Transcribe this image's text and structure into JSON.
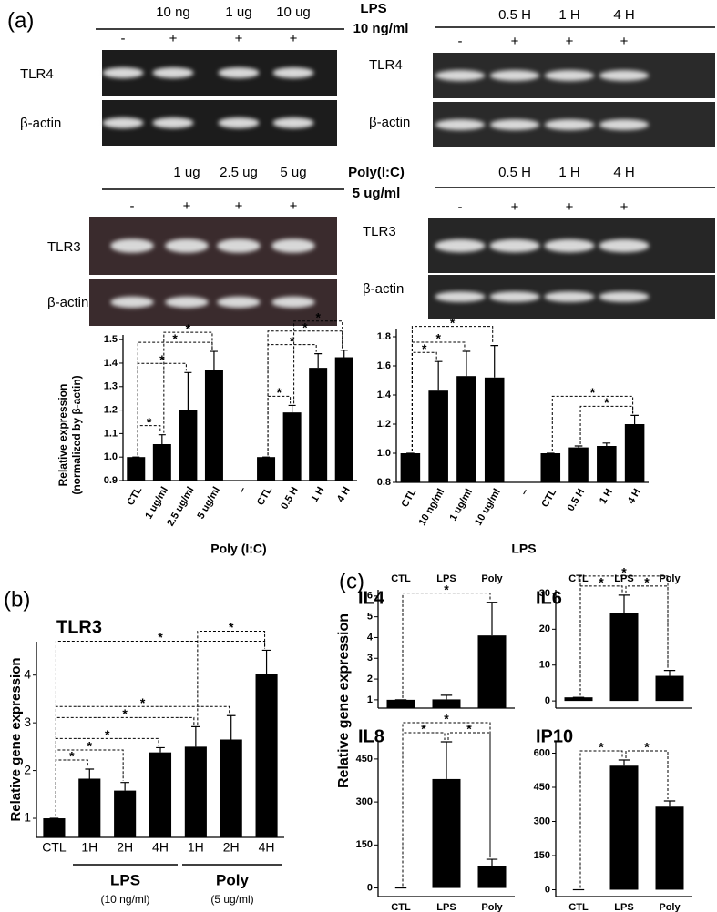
{
  "panel_labels": [
    "(a)",
    "(b)",
    "(c)"
  ],
  "stimuli": [
    {
      "agent": "LPS",
      "dose": "10 ng/ml"
    },
    {
      "agent": "Poly(I:C)",
      "dose": "5 ug/ml"
    }
  ],
  "gels": [
    {
      "conditions": [
        "10 ng",
        "1 ug",
        "10 ug"
      ],
      "treatment": [
        "-",
        "+",
        "+",
        "+"
      ],
      "rows": [
        "TLR4",
        "β-actin"
      ]
    },
    {
      "conditions": [
        "0.5 H",
        "1 H",
        "4 H"
      ],
      "treatment": [
        "-",
        "+",
        "+",
        "+"
      ],
      "rows": [
        "TLR4",
        "β-actin"
      ]
    },
    {
      "conditions": [
        "1 ug",
        "2.5 ug",
        "5 ug"
      ],
      "treatment": [
        "-",
        "+",
        "+",
        "+"
      ],
      "rows": [
        "TLR3",
        "β-actin"
      ]
    },
    {
      "conditions": [
        "0.5 H",
        "1 H",
        "4 H"
      ],
      "treatment": [
        "-",
        "+",
        "+",
        "+"
      ],
      "rows": [
        "TLR3",
        "β-actin"
      ]
    }
  ],
  "panel_c": {
    "ylabel": "Relative gene expression"
  },
  "chart_data": [
    {
      "type": "bar",
      "color": "#000000",
      "xlabel": "Poly (I:C)",
      "ylabel": [
        "Relative expression",
        "(normalized by β-actin)"
      ],
      "categories": [
        "CTL",
        "1 ug/ml",
        "2.5 ug/ml",
        "5 ug/ml",
        "–",
        "CTL",
        "0.5 H",
        "1 H",
        "4 H"
      ],
      "values": [
        1.0,
        1.055,
        1.2,
        1.37,
        null,
        1.0,
        1.19,
        1.38,
        1.425
      ],
      "errors": [
        0,
        0.04,
        0.16,
        0.08,
        null,
        0,
        0.03,
        0.06,
        0.03
      ],
      "ylim": [
        0.9,
        1.52
      ],
      "yticks": [
        0.9,
        {
          "value": 1.0,
          "label": "1.0"
        },
        1.1,
        1.2,
        1.3,
        1.4,
        1.5
      ],
      "significance": [
        "*",
        "*",
        "*",
        "*",
        "*",
        "*",
        "*",
        "*"
      ]
    },
    {
      "type": "bar",
      "color": "#000000",
      "xlabel": "LPS",
      "categories": [
        "CTL",
        "10 ng/ml",
        "1 ug/ml",
        "10 ug/ml",
        "–",
        "CTL",
        "0.5 H",
        "1 H",
        "4 H"
      ],
      "values": [
        1.0,
        1.43,
        1.53,
        1.52,
        null,
        1.0,
        1.04,
        1.05,
        1.2
      ],
      "errors": [
        0,
        0.2,
        0.17,
        0.22,
        null,
        0,
        0.01,
        0.02,
        0.06
      ],
      "ylim": [
        0.8,
        1.85
      ],
      "yticks": [
        0.8,
        {
          "value": 1.0,
          "label": "1.0"
        },
        1.2,
        1.4,
        1.6,
        1.8
      ],
      "significance": [
        "*",
        "*",
        "*",
        "*",
        "*"
      ]
    },
    {
      "type": "bar",
      "color": "#000000",
      "title": "TLR3",
      "ylabel": "Relative gene expression",
      "categories": [
        "CTL",
        "1H",
        "2H",
        "4H",
        "1H",
        "2H",
        "4H"
      ],
      "values": [
        1.0,
        1.83,
        1.58,
        2.38,
        2.5,
        2.65,
        4.02
      ],
      "errors": [
        0,
        0.2,
        0.17,
        0.1,
        0.42,
        0.5,
        0.5
      ],
      "groups": [
        {
          "label": "LPS",
          "note": "(10 ng/ml)"
        },
        {
          "label": "Poly",
          "note": "(5 ug/ml)"
        }
      ],
      "ylim": [
        0.6,
        4.7
      ],
      "yticks": [
        1,
        2,
        3,
        4
      ],
      "significance": [
        "*",
        "*",
        "*",
        "*",
        "*",
        "*",
        "*"
      ]
    },
    {
      "type": "bar",
      "color": "#000000",
      "title": "IL4",
      "categories": [
        "CTL",
        "LPS",
        "Poly"
      ],
      "values": [
        1.0,
        1.02,
        4.1
      ],
      "errors": [
        0,
        0.2,
        1.6
      ],
      "ylim": [
        0.6,
        6.3
      ],
      "yticks": [
        1,
        2,
        3,
        4,
        5,
        6
      ],
      "significance": [
        "*"
      ]
    },
    {
      "type": "bar",
      "color": "#000000",
      "title": "IL6",
      "categories": [
        "CTL",
        "LPS",
        "Poly"
      ],
      "values": [
        1.0,
        24.5,
        7.0
      ],
      "errors": [
        0,
        5,
        1.5
      ],
      "ylim": [
        -2,
        31
      ],
      "yticks": [
        0,
        10,
        20,
        30
      ],
      "significance": [
        "*",
        "*",
        "*"
      ]
    },
    {
      "type": "bar",
      "color": "#000000",
      "title": "IL8",
      "categories": [
        "CTL",
        "LPS",
        "Poly"
      ],
      "values": [
        0,
        380,
        75
      ],
      "errors": [
        0,
        130,
        25
      ],
      "ylim": [
        -30,
        510
      ],
      "yticks": [
        0,
        150,
        300,
        450
      ],
      "significance": [
        "*",
        "*",
        "*"
      ]
    },
    {
      "type": "bar",
      "color": "#000000",
      "title": "IP10",
      "categories": [
        "CTL",
        "LPS",
        "Poly"
      ],
      "values": [
        0,
        545,
        365
      ],
      "errors": [
        0,
        25,
        25
      ],
      "ylim": [
        -30,
        650
      ],
      "yticks": [
        0,
        150,
        300,
        450,
        600
      ],
      "significance": [
        "*",
        "*"
      ]
    }
  ]
}
